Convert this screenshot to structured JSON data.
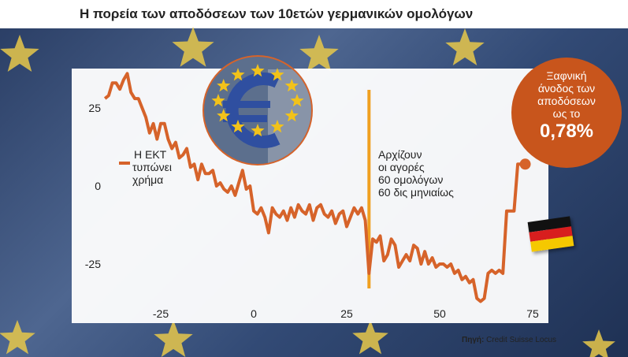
{
  "title": "Η πορεία των αποδόσεων των 10ετών γερμανικών ομολόγων",
  "source_label": "Πηγή:",
  "source_text": "Credit Suisse Locus",
  "annotations": {
    "ecb_line1": "Η ΕΚΤ",
    "ecb_line2": "τυπώνει",
    "ecb_line3": "χρήμα",
    "qe_line1": "Αρχίζουν",
    "qe_line2": "οι αγορές",
    "qe_line3": "60 ομολόγων",
    "qe_line4": "60 δις μηνιαίως"
  },
  "bubble": {
    "line1": "Ξαφνική",
    "line2": "άνοδος των",
    "line3": "αποδόσεων",
    "line4": "ως το",
    "value": "0,78%"
  },
  "colors": {
    "series": "#d6632a",
    "marker_line": "#f0a020",
    "bubble": "#c8551c"
  },
  "icons": [
    "euro-sculpture-icon",
    "german-flag-icon"
  ],
  "chart_data": {
    "type": "line",
    "title": "Η πορεία των αποδόσεων των 10ετών γερμανικών ομολόγων",
    "xlabel": "",
    "ylabel": "",
    "xlim": [
      -40,
      77
    ],
    "ylim": [
      -37,
      37
    ],
    "xticks": [
      -25,
      0,
      25,
      50,
      75
    ],
    "yticks": [
      25,
      0,
      -25
    ],
    "xtick_labels": [
      "-25",
      "0",
      "25",
      "50",
      "75"
    ],
    "ytick_labels": [
      "25",
      "0",
      "-25"
    ],
    "grid": false,
    "vertical_marker_x": 31,
    "series": [
      {
        "name": "",
        "x": [
          -40,
          -39,
          -38,
          -37,
          -36,
          -35,
          -34,
          -33,
          -32,
          -31,
          -30,
          -29,
          -28,
          -27,
          -26,
          -25,
          -24,
          -23,
          -22,
          -21,
          -20,
          -19,
          -18,
          -17,
          -16,
          -15,
          -14,
          -13,
          -12,
          -11,
          -10,
          -9,
          -8,
          -7,
          -6,
          -5,
          -4,
          -3,
          -2,
          -1,
          0,
          1,
          2,
          3,
          4,
          5,
          6,
          7,
          8,
          9,
          10,
          11,
          12,
          13,
          14,
          15,
          16,
          17,
          18,
          19,
          20,
          21,
          22,
          23,
          24,
          25,
          26,
          27,
          28,
          29,
          30,
          31,
          32,
          33,
          34,
          35,
          36,
          37,
          38,
          39,
          40,
          41,
          42,
          43,
          44,
          45,
          46,
          47,
          48,
          49,
          50,
          51,
          52,
          53,
          54,
          55,
          56,
          57,
          58,
          59,
          60,
          61,
          62,
          63,
          64,
          65,
          66,
          67,
          68,
          69,
          70,
          71,
          72,
          73
        ],
        "values": [
          28,
          29,
          33,
          33,
          31,
          34,
          36,
          30,
          28,
          28,
          25,
          22,
          17,
          20,
          15,
          20,
          20,
          15,
          12,
          14,
          9,
          10,
          12,
          6,
          7,
          2,
          7,
          4,
          4,
          5,
          0,
          1,
          -1,
          -2,
          0,
          -3,
          1,
          5,
          -1,
          0,
          -8,
          -9,
          -7,
          -10,
          -15,
          -7,
          -9,
          -10,
          -8,
          -11,
          -7,
          -10,
          -6,
          -8,
          -9,
          -6,
          -11,
          -7,
          -6,
          -9,
          -10,
          -8,
          -12,
          -9,
          -8,
          -13,
          -10,
          -7,
          -9,
          -7,
          -11,
          -28,
          -17,
          -18,
          -16,
          -24,
          -22,
          -17,
          -19,
          -26,
          -24,
          -22,
          -24,
          -19,
          -20,
          -25,
          -21,
          -25,
          -23,
          -26,
          -25,
          -25,
          -26,
          -25,
          -28,
          -27,
          -30,
          -29,
          -31,
          -30,
          -36,
          -37,
          -36,
          -28,
          -27,
          -28,
          -27,
          -28,
          -8,
          -8,
          -8,
          7,
          7,
          7
        ]
      }
    ]
  }
}
